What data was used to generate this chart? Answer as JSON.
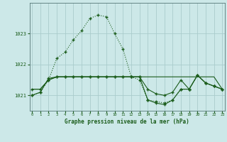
{
  "xlabel": "Graphe pression niveau de la mer (hPa)",
  "bg_color": "#cce8e8",
  "grid_color": "#aacccc",
  "line_color": "#1a5c1a",
  "x": [
    0,
    1,
    2,
    3,
    4,
    5,
    6,
    7,
    8,
    9,
    10,
    11,
    12,
    13,
    14,
    15,
    16,
    17,
    18,
    19,
    20,
    21,
    22,
    23
  ],
  "series1": [
    1021.0,
    1021.1,
    1021.5,
    1022.2,
    1022.4,
    1022.8,
    1023.1,
    1023.5,
    1023.6,
    1023.55,
    1023.0,
    1022.5,
    1021.6,
    1021.5,
    1020.85,
    1020.8,
    1020.75,
    1020.85,
    1021.2,
    1021.2,
    1021.65,
    1021.4,
    1021.3,
    1021.2
  ],
  "series2": [
    1021.2,
    1021.2,
    1021.5,
    1021.6,
    1021.6,
    1021.6,
    1021.6,
    1021.6,
    1021.6,
    1021.6,
    1021.6,
    1021.6,
    1021.6,
    1021.6,
    1021.6,
    1021.6,
    1021.6,
    1021.6,
    1021.6,
    1021.6,
    1021.6,
    1021.6,
    1021.6,
    1021.2
  ],
  "series3": [
    1021.2,
    1021.2,
    1021.5,
    1021.6,
    1021.6,
    1021.6,
    1021.6,
    1021.6,
    1021.6,
    1021.6,
    1021.6,
    1021.6,
    1021.6,
    1021.6,
    1021.2,
    1021.05,
    1021.0,
    1021.1,
    1021.5,
    1021.2,
    1021.65,
    1021.4,
    1021.3,
    1021.2
  ],
  "series4": [
    1021.0,
    1021.1,
    1021.55,
    1021.6,
    1021.6,
    1021.6,
    1021.6,
    1021.6,
    1021.6,
    1021.6,
    1021.6,
    1021.6,
    1021.6,
    1021.6,
    1020.85,
    1020.75,
    1020.7,
    1020.85,
    1021.2,
    1021.2,
    1021.65,
    1021.4,
    1021.3,
    1021.2
  ],
  "ylim": [
    1020.5,
    1024.0
  ],
  "yticks": [
    1021,
    1022,
    1023
  ],
  "xticks": [
    0,
    1,
    2,
    3,
    4,
    5,
    6,
    7,
    8,
    9,
    10,
    11,
    12,
    13,
    14,
    15,
    16,
    17,
    18,
    19,
    20,
    21,
    22,
    23
  ],
  "marker": "+"
}
